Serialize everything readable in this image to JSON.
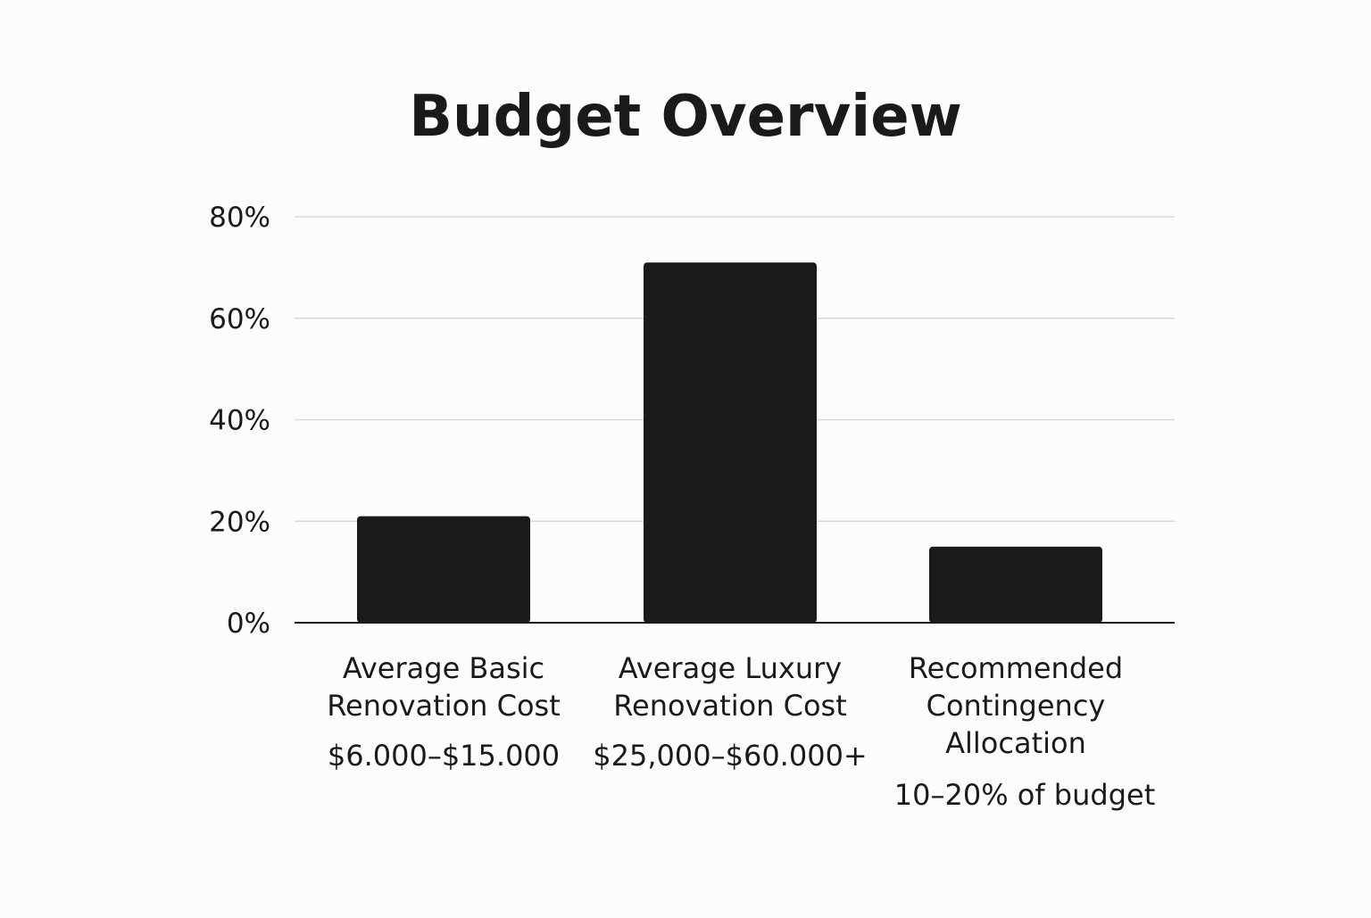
{
  "chart_data": {
    "type": "bar",
    "title": "Budget Overview",
    "xlabel": "",
    "ylabel": "",
    "ylim": [
      0,
      80
    ],
    "yticks": [
      0,
      20,
      40,
      60,
      80
    ],
    "ytick_labels": [
      "0%",
      "20%",
      "40%",
      "60%",
      "80%"
    ],
    "grid": true,
    "categories": [
      {
        "label_lines": [
          "Average Basic",
          "Renovation Cost"
        ],
        "value_label": "$6.000–$15.000"
      },
      {
        "label_lines": [
          "Average Luxury",
          "Renovation Cost"
        ],
        "value_label": "$25,000–$60.000+"
      },
      {
        "label_lines": [
          "Recommended",
          "Contingency",
          "Allocation"
        ],
        "value_label": "10–20% of budget"
      }
    ],
    "values": [
      21,
      71,
      15
    ],
    "colors": {
      "bar": "#1a1a1a",
      "grid": "#d9d9de",
      "text": "#1a1a1a",
      "background": "#fcfcfb"
    }
  }
}
